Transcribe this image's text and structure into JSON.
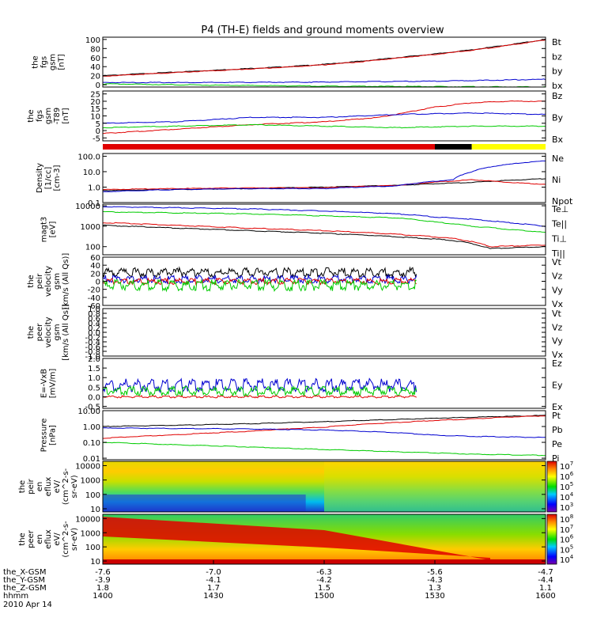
{
  "title": "P4 (TH-E) fields and ground moments overview",
  "colors": {
    "black": "#000000",
    "red": "#e00000",
    "green": "#00cc00",
    "blue": "#0000d0",
    "yellow": "#ffff00"
  },
  "chart_data": [
    {
      "type": "line",
      "ylabel": [
        "the",
        "fgs",
        "gsm",
        "[nT]"
      ],
      "ylim": [
        -5,
        105
      ],
      "yticks": [
        0,
        20,
        40,
        60,
        80,
        100
      ],
      "tick_labels": [
        "0",
        "20",
        "40",
        "60",
        "80",
        "100"
      ],
      "legend": [
        {
          "name": "Bt",
          "color": "#000000"
        },
        {
          "name": "bz",
          "color": "#e00000"
        },
        {
          "name": "by",
          "color": "#00cc00"
        },
        {
          "name": "bx",
          "color": "#0000d0"
        }
      ],
      "series": [
        {
          "name": "Bt",
          "color": "#000000",
          "x": [
            0,
            10,
            20,
            30,
            40,
            50,
            60,
            70,
            80,
            90,
            100,
            110,
            120
          ],
          "values": [
            20,
            24,
            28,
            32,
            36,
            40,
            45,
            52,
            60,
            68,
            77,
            88,
            100
          ]
        },
        {
          "name": "bz",
          "color": "#e00000",
          "x": [
            0,
            10,
            20,
            30,
            40,
            50,
            60,
            70,
            80,
            90,
            100,
            110,
            120
          ],
          "values": [
            19,
            23,
            27,
            31,
            35,
            39,
            44,
            51,
            59,
            67,
            76,
            87,
            99
          ]
        },
        {
          "name": "by",
          "color": "#00cc00",
          "x": [
            0,
            30,
            60,
            90,
            120
          ],
          "values": [
            2,
            -1,
            -3,
            -4,
            -5
          ]
        },
        {
          "name": "bx",
          "color": "#0000d0",
          "x": [
            0,
            30,
            60,
            90,
            120
          ],
          "values": [
            5,
            5,
            6,
            8,
            12
          ]
        }
      ]
    },
    {
      "type": "line",
      "ylabel": [
        "the",
        "fgs",
        "gsm",
        "-T89",
        "[nT]"
      ],
      "ylim": [
        -7,
        27
      ],
      "yticks": [
        -5,
        0,
        5,
        10,
        15,
        20,
        25
      ],
      "tick_labels": [
        "-5",
        "0",
        "5",
        "10",
        "15",
        "20",
        "25"
      ],
      "legend": [
        {
          "name": "Bz",
          "color": "#e00000"
        },
        {
          "name": "By",
          "color": "#00cc00"
        },
        {
          "name": "Bx",
          "color": "#0000d0"
        }
      ],
      "series": [
        {
          "name": "Bz",
          "color": "#e00000",
          "x": [
            0,
            20,
            40,
            60,
            75,
            90,
            100,
            110,
            120
          ],
          "values": [
            -2,
            1,
            4,
            6,
            9,
            16,
            19,
            20,
            20
          ]
        },
        {
          "name": "By",
          "color": "#00cc00",
          "x": [
            0,
            20,
            40,
            60,
            80,
            100,
            120
          ],
          "values": [
            2,
            3,
            4,
            3,
            2,
            3,
            3
          ]
        },
        {
          "name": "Bx",
          "color": "#0000d0",
          "x": [
            0,
            20,
            40,
            60,
            80,
            100,
            120
          ],
          "values": [
            5,
            6,
            9,
            9,
            11,
            12,
            11
          ]
        }
      ]
    },
    {
      "type": "bar",
      "segments": [
        {
          "x0": 0,
          "x1": 90,
          "color": "#e00000"
        },
        {
          "x0": 90,
          "x1": 100,
          "color": "#000000"
        },
        {
          "x0": 100,
          "x1": 120,
          "color": "#ffff00"
        }
      ]
    },
    {
      "type": "line",
      "ylabel": [
        "Density",
        "[1/cc]",
        "[cm-3]"
      ],
      "log": true,
      "ylim": [
        0.1,
        150
      ],
      "yticks": [
        0.1,
        1,
        10,
        100
      ],
      "tick_labels": [
        "0.1",
        "1.0",
        "10.0",
        "100.0"
      ],
      "legend": [
        {
          "name": "Ne",
          "color": "#e00000"
        },
        {
          "name": "Ni",
          "color": "#000000"
        },
        {
          "name": "Npot",
          "color": "#0000d0"
        }
      ],
      "series": [
        {
          "name": "Ni",
          "color": "#000000",
          "x": [
            0,
            20,
            40,
            60,
            80,
            100,
            120
          ],
          "values": [
            0.6,
            0.7,
            0.8,
            1.0,
            1.3,
            2.0,
            3.5
          ]
        },
        {
          "name": "Ne",
          "color": "#e00000",
          "x": [
            0,
            20,
            40,
            60,
            80,
            95,
            100,
            110,
            120
          ],
          "values": [
            0.7,
            0.8,
            0.9,
            0.9,
            1.3,
            2.5,
            3.0,
            2.0,
            1.5
          ]
        },
        {
          "name": "Npot",
          "color": "#0000d0",
          "x": [
            0,
            20,
            40,
            60,
            80,
            95,
            100,
            110,
            120
          ],
          "values": [
            0.5,
            0.7,
            0.8,
            0.8,
            1.2,
            3.0,
            10.0,
            30.0,
            50.0
          ]
        }
      ]
    },
    {
      "type": "line",
      "ylabel": [
        "magt3",
        "[eV]"
      ],
      "log": true,
      "ylim": [
        40,
        12000
      ],
      "yticks": [
        100,
        1000,
        10000
      ],
      "tick_labels": [
        "100",
        "1000",
        "10000"
      ],
      "legend": [
        {
          "name": "Te⊥",
          "color": "#e00000"
        },
        {
          "name": "Te||",
          "color": "#000000"
        },
        {
          "name": "Ti⊥",
          "color": "#0000d0"
        },
        {
          "name": "Ti||",
          "color": "#00cc00"
        }
      ],
      "series": [
        {
          "name": "Ti⊥",
          "color": "#0000d0",
          "x": [
            0,
            20,
            40,
            60,
            80,
            90,
            100,
            110,
            120
          ],
          "values": [
            9000,
            8000,
            7000,
            5500,
            4000,
            2800,
            2200,
            1500,
            1000
          ]
        },
        {
          "name": "Ti||",
          "color": "#00cc00",
          "x": [
            0,
            20,
            40,
            60,
            80,
            90,
            100,
            110,
            120
          ],
          "values": [
            5000,
            4500,
            4000,
            3200,
            2500,
            1600,
            1000,
            700,
            500
          ]
        },
        {
          "name": "Te⊥",
          "color": "#e00000",
          "x": [
            0,
            20,
            40,
            60,
            80,
            95,
            105,
            120
          ],
          "values": [
            1500,
            1100,
            800,
            600,
            400,
            250,
            100,
            120
          ]
        },
        {
          "name": "Te||",
          "color": "#000000",
          "x": [
            0,
            20,
            40,
            60,
            80,
            95,
            105,
            120
          ],
          "values": [
            1100,
            800,
            600,
            450,
            300,
            200,
            80,
            100
          ]
        }
      ]
    },
    {
      "type": "line",
      "ylabel": [
        "the",
        "peir",
        "velocity",
        "gsm",
        "[km/s (All Qs)]"
      ],
      "ylim": [
        -60,
        60
      ],
      "yticks": [
        -60,
        -40,
        -20,
        0,
        20,
        40,
        60
      ],
      "tick_labels": [
        "-60",
        "-40",
        "-20",
        "0",
        "20",
        "40",
        "60"
      ],
      "legend": [
        {
          "name": "Vt",
          "color": "#000000"
        },
        {
          "name": "Vz",
          "color": "#e00000"
        },
        {
          "name": "Vy",
          "color": "#00cc00"
        },
        {
          "name": "Vx",
          "color": "#0000d0"
        }
      ],
      "x_end": 85,
      "series": [
        {
          "name": "Vt",
          "color": "#000000",
          "base": 22,
          "amp": 12
        },
        {
          "name": "Vx",
          "color": "#0000d0",
          "base": 5,
          "amp": 10
        },
        {
          "name": "Vz",
          "color": "#e00000",
          "base": 0,
          "amp": 8
        },
        {
          "name": "Vy",
          "color": "#00cc00",
          "base": -10,
          "amp": 14
        }
      ]
    },
    {
      "type": "line",
      "ylabel": [
        "the",
        "peer",
        "velocity",
        "gsm",
        "[km/s (All Qs)]"
      ],
      "ylim": [
        -1,
        1
      ],
      "yticks": [
        -1,
        -0.8,
        -0.6,
        -0.4,
        -0.2,
        0,
        0.2,
        0.4,
        0.6,
        0.8,
        1
      ],
      "tick_labels": [
        "-1.0",
        "-0.8",
        "-0.6",
        "-0.4",
        "-0.2",
        "0.0",
        "0.2",
        "0.4",
        "0.6",
        "0.8",
        "1.0"
      ],
      "legend": [
        {
          "name": "Vt",
          "color": "#000000"
        },
        {
          "name": "Vz",
          "color": "#e00000"
        },
        {
          "name": "Vy",
          "color": "#00cc00"
        },
        {
          "name": "Vx",
          "color": "#0000d0"
        }
      ],
      "series": []
    },
    {
      "type": "line",
      "ylabel": [
        "E=-VxB",
        "[mV/m]"
      ],
      "ylim": [
        -0.6,
        2.0
      ],
      "yticks": [
        -0.5,
        0,
        0.5,
        1.0,
        1.5,
        2.0
      ],
      "tick_labels": [
        "-0.5",
        "0.0",
        "0.5",
        "1.0",
        "1.5",
        "2.0"
      ],
      "legend": [
        {
          "name": "Ez",
          "color": "#e00000"
        },
        {
          "name": "Ey",
          "color": "#00cc00"
        },
        {
          "name": "Ex",
          "color": "#0000d0"
        }
      ],
      "x_end": 85,
      "series": [
        {
          "name": "Ex",
          "color": "#0000d0",
          "base": 0.6,
          "amp": 0.35
        },
        {
          "name": "Ey",
          "color": "#00cc00",
          "base": 0.3,
          "amp": 0.25
        },
        {
          "name": "Ez",
          "color": "#e00000",
          "base": 0.0,
          "amp": 0.06
        }
      ]
    },
    {
      "type": "line",
      "ylabel": [
        "Pressure",
        "[nPa]"
      ],
      "log": true,
      "ylim": [
        0.008,
        10
      ],
      "yticks": [
        0.01,
        0.1,
        1,
        10
      ],
      "tick_labels": [
        "0.01",
        "0.10",
        "1.00",
        "10.00"
      ],
      "legend": [
        {
          "name": "Pt",
          "color": "#000000"
        },
        {
          "name": "Pb",
          "color": "#e00000"
        },
        {
          "name": "Pe",
          "color": "#00cc00"
        },
        {
          "name": "Pi",
          "color": "#0000d0"
        }
      ],
      "series": [
        {
          "name": "Pt",
          "color": "#000000",
          "x": [
            0,
            20,
            40,
            60,
            80,
            100,
            120
          ],
          "values": [
            1.0,
            1.2,
            1.5,
            2.0,
            2.8,
            3.8,
            5.0
          ]
        },
        {
          "name": "Pb",
          "color": "#e00000",
          "x": [
            0,
            20,
            40,
            60,
            80,
            100,
            120
          ],
          "values": [
            0.18,
            0.3,
            0.5,
            0.9,
            1.8,
            3.0,
            4.8
          ]
        },
        {
          "name": "Pi",
          "color": "#0000d0",
          "x": [
            0,
            20,
            40,
            60,
            80,
            90,
            100,
            120
          ],
          "values": [
            0.8,
            0.75,
            0.7,
            0.6,
            0.4,
            0.28,
            0.24,
            0.2
          ]
        },
        {
          "name": "Pe",
          "color": "#00cc00",
          "x": [
            0,
            20,
            40,
            60,
            80,
            100,
            120
          ],
          "values": [
            0.1,
            0.07,
            0.05,
            0.035,
            0.025,
            0.018,
            0.015
          ]
        }
      ]
    },
    {
      "type": "heatmap",
      "ylabel": [
        "the",
        "peir",
        "en",
        "eflux",
        "eV/",
        "(cm^2-s-",
        "sr-eV)"
      ],
      "log": true,
      "ylim": [
        6,
        20000
      ],
      "yticks": [
        10,
        100,
        1000,
        10000
      ],
      "tick_labels": [
        "10",
        "100",
        "1000",
        "10000"
      ],
      "colorbar": {
        "exponents": [
          "3",
          "4",
          "5",
          "6",
          "7"
        ]
      }
    },
    {
      "type": "heatmap",
      "ylabel": [
        "the",
        "peer",
        "en",
        "eflux",
        "eV/",
        "(cm^2-s-",
        "sr-eV)"
      ],
      "log": true,
      "ylim": [
        6,
        20000
      ],
      "yticks": [
        10,
        100,
        1000,
        10000
      ],
      "tick_labels": [
        "10",
        "100",
        "1000",
        "10000"
      ],
      "colorbar": {
        "exponents": [
          "4",
          "5",
          "6",
          "7",
          "8"
        ]
      }
    }
  ],
  "xaxis": {
    "range_minutes": [
      0,
      120
    ],
    "tick_minutes": [
      0,
      30,
      60,
      90,
      120
    ],
    "rows": [
      {
        "label": "the_X-GSM",
        "values": [
          "-7.6",
          "-7.0",
          "-6.3",
          "-5.6",
          "-4.7"
        ]
      },
      {
        "label": "the_Y-GSM",
        "values": [
          "-3.9",
          "-4.1",
          "-4.2",
          "-4.3",
          "-4.4"
        ]
      },
      {
        "label": "the_Z-GSM",
        "values": [
          "1.8",
          "1.7",
          "1.5",
          "1.3",
          "1.1"
        ]
      },
      {
        "label": "hhmm",
        "values": [
          "1400",
          "1430",
          "1500",
          "1530",
          "1600"
        ]
      }
    ],
    "date": "2010 Apr 14"
  }
}
